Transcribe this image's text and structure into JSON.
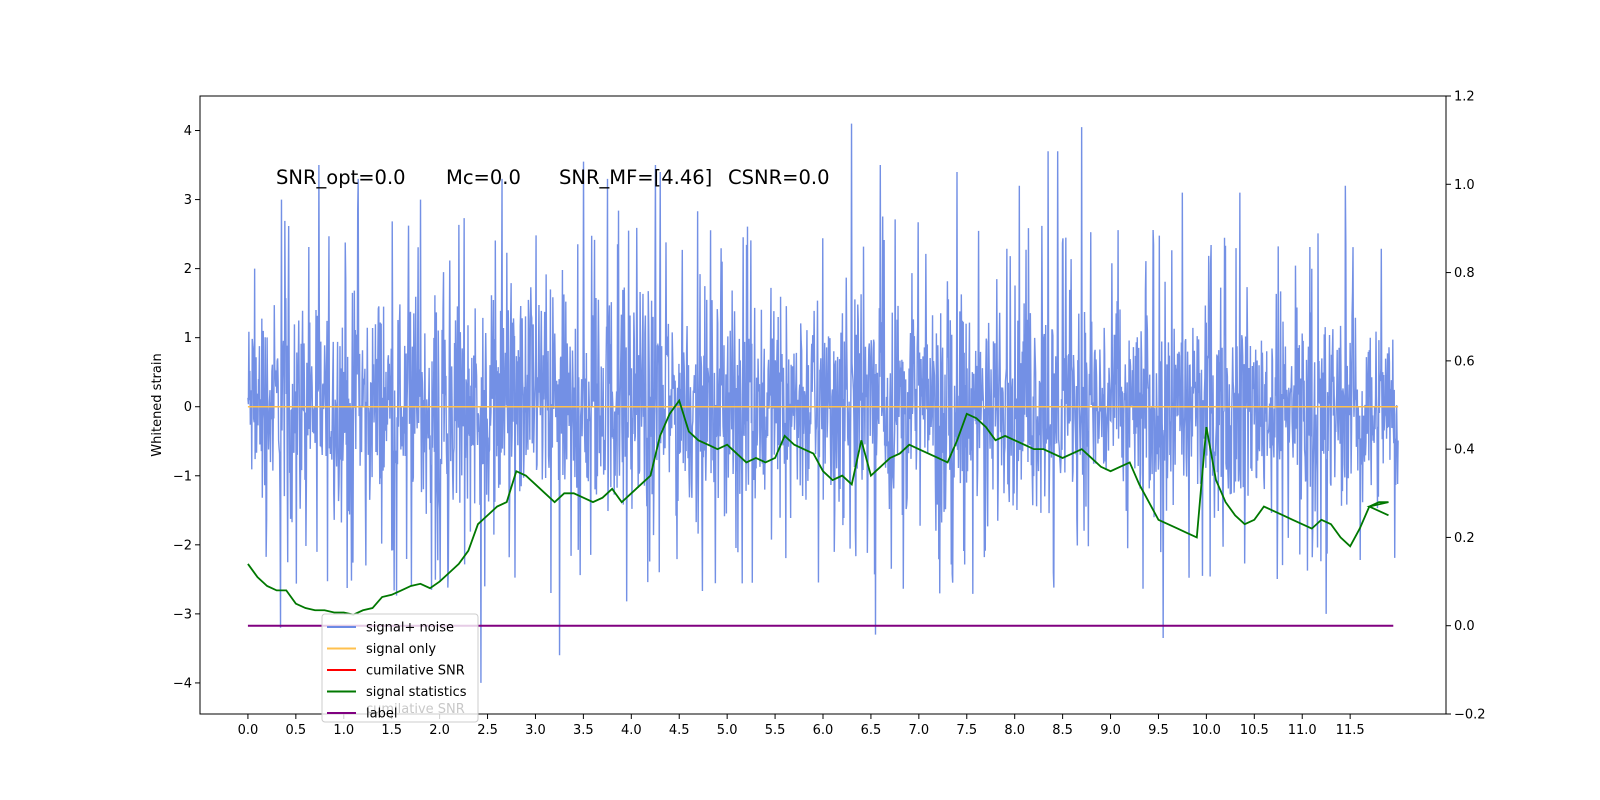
{
  "chart_data": {
    "type": "line",
    "title": "",
    "xlabel": "",
    "ylabel": "Whitened strain",
    "xlim": [
      -0.5,
      12.5
    ],
    "ylim": [
      -4.45,
      4.5
    ],
    "y2lim": [
      -0.2,
      1.2
    ],
    "grid": false,
    "legend_position": "lower-left",
    "xticks": [
      "0.0",
      "0.5",
      "1.0",
      "1.5",
      "2.0",
      "2.5",
      "3.0",
      "3.5",
      "4.0",
      "4.5",
      "5.0",
      "5.5",
      "6.0",
      "6.5",
      "7.0",
      "7.5",
      "8.0",
      "8.5",
      "9.0",
      "9.5",
      "10.0",
      "10.5",
      "11.0",
      "11.5"
    ],
    "yticks": [
      "−4",
      "−3",
      "−2",
      "−1",
      "0",
      "1",
      "2",
      "3",
      "4"
    ],
    "y2ticks": [
      "−0.2",
      "0.0",
      "0.2",
      "0.4",
      "0.6",
      "0.8",
      "1.0",
      "1.2"
    ],
    "annotations": [
      {
        "text": "SNR_opt=0.0",
        "x": 0.2,
        "y": 3.2
      },
      {
        "text": "Mc=0.0",
        "x": 2.0,
        "y": 3.2
      },
      {
        "text": "SNR_MF=[4.46]",
        "x": 3.2,
        "y": 3.2
      },
      {
        "text": "CSNR=0.0",
        "x": 5.0,
        "y": 3.2
      }
    ],
    "legend": [
      {
        "label": "signal+ noise",
        "color": "#6c8ae4"
      },
      {
        "label": "signal only",
        "color": "#ffc04d"
      },
      {
        "label": "cumilative SNR",
        "color": "#ff0000"
      },
      {
        "label": "signal statistics",
        "color": "#007800"
      },
      {
        "label": "label",
        "color": "#800080"
      }
    ],
    "legend_ghost_text": "cumilative SNR",
    "series": [
      {
        "name": "signal+ noise",
        "axis": "left",
        "color": "#6c8ae4",
        "x_start": 0.0,
        "x_end": 12.0,
        "envelope": {
          "x": [
            0.0,
            0.5,
            1.0,
            1.5,
            2.0,
            2.5,
            3.0,
            3.5,
            4.0,
            4.5,
            5.0,
            5.5,
            6.0,
            6.5,
            7.0,
            7.5,
            8.0,
            8.5,
            9.0,
            9.5,
            10.0,
            10.5,
            11.0,
            11.5,
            12.0
          ],
          "upper": [
            2.1,
            2.3,
            2.4,
            2.4,
            2.3,
            2.4,
            2.5,
            2.4,
            2.5,
            2.4,
            2.3,
            2.4,
            2.4,
            2.3,
            2.4,
            2.4,
            2.3,
            2.3,
            2.2,
            2.2,
            2.1,
            2.1,
            2.1,
            2.1,
            1.9
          ],
          "lower": [
            -2.1,
            -2.2,
            -2.3,
            -2.3,
            -2.2,
            -2.3,
            -2.3,
            -2.3,
            -2.4,
            -2.3,
            -2.2,
            -2.3,
            -2.3,
            -2.2,
            -2.3,
            -2.3,
            -2.2,
            -2.2,
            -2.2,
            -2.2,
            -2.1,
            -2.1,
            -2.1,
            -2.1,
            -1.9
          ]
        },
        "spikes": [
          {
            "x": 0.35,
            "y": 3.0
          },
          {
            "x": 0.34,
            "y": -3.2
          },
          {
            "x": 0.74,
            "y": 3.5
          },
          {
            "x": 1.15,
            "y": 3.3
          },
          {
            "x": 1.8,
            "y": 3.0
          },
          {
            "x": 2.43,
            "y": -4.0
          },
          {
            "x": 2.65,
            "y": 3.3
          },
          {
            "x": 3.25,
            "y": -3.6
          },
          {
            "x": 3.5,
            "y": 3.55
          },
          {
            "x": 3.75,
            "y": 3.3
          },
          {
            "x": 4.25,
            "y": 3.5
          },
          {
            "x": 4.3,
            "y": 3.4
          },
          {
            "x": 6.3,
            "y": 4.1
          },
          {
            "x": 6.55,
            "y": -3.3
          },
          {
            "x": 6.6,
            "y": 3.5
          },
          {
            "x": 7.4,
            "y": 3.4
          },
          {
            "x": 8.05,
            "y": 3.2
          },
          {
            "x": 8.35,
            "y": 3.7
          },
          {
            "x": 8.45,
            "y": 3.7
          },
          {
            "x": 8.7,
            "y": 4.05
          },
          {
            "x": 9.55,
            "y": -3.35
          },
          {
            "x": 9.75,
            "y": 3.1
          },
          {
            "x": 10.35,
            "y": 3.1
          },
          {
            "x": 11.25,
            "y": -3.0
          },
          {
            "x": 11.45,
            "y": 3.2
          }
        ]
      },
      {
        "name": "signal only",
        "axis": "left",
        "color": "#ffc04d",
        "x": [
          0.0,
          12.0
        ],
        "y": [
          0.0,
          0.0
        ]
      },
      {
        "name": "signal statistics",
        "axis": "right",
        "color": "#007800",
        "x": [
          0.0,
          0.1,
          0.2,
          0.3,
          0.4,
          0.5,
          0.6,
          0.7,
          0.8,
          0.9,
          1.0,
          1.1,
          1.2,
          1.3,
          1.4,
          1.5,
          1.6,
          1.7,
          1.8,
          1.9,
          2.0,
          2.1,
          2.2,
          2.3,
          2.4,
          2.5,
          2.6,
          2.7,
          2.8,
          2.9,
          3.0,
          3.1,
          3.2,
          3.3,
          3.4,
          3.5,
          3.6,
          3.7,
          3.8,
          3.9,
          4.0,
          4.1,
          4.2,
          4.3,
          4.4,
          4.5,
          4.6,
          4.7,
          4.8,
          4.9,
          5.0,
          5.1,
          5.2,
          5.3,
          5.4,
          5.5,
          5.6,
          5.7,
          5.8,
          5.9,
          6.0,
          6.1,
          6.2,
          6.3,
          6.4,
          6.5,
          6.6,
          6.7,
          6.8,
          6.9,
          7.0,
          7.1,
          7.2,
          7.3,
          7.4,
          7.5,
          7.6,
          7.7,
          7.8,
          7.9,
          8.0,
          8.1,
          8.2,
          8.3,
          8.4,
          8.5,
          8.6,
          8.7,
          8.8,
          8.9,
          9.0,
          9.1,
          9.2,
          9.3,
          9.4,
          9.5,
          9.6,
          9.7,
          9.8,
          9.9,
          10.0,
          10.1,
          10.2,
          10.3,
          10.4,
          10.5,
          10.6,
          10.7,
          10.8,
          10.9,
          11.0,
          11.1,
          11.2,
          11.3,
          11.4,
          11.5,
          11.6,
          11.7,
          11.8,
          11.9
        ],
        "y": [
          0.14,
          0.11,
          0.09,
          0.08,
          0.08,
          0.05,
          0.04,
          0.035,
          0.035,
          0.03,
          0.03,
          0.025,
          0.035,
          0.04,
          0.065,
          0.07,
          0.08,
          0.09,
          0.095,
          0.085,
          0.1,
          0.12,
          0.14,
          0.17,
          0.23,
          0.25,
          0.27,
          0.28,
          0.35,
          0.34,
          0.32,
          0.3,
          0.28,
          0.3,
          0.3,
          0.29,
          0.28,
          0.29,
          0.31,
          0.28,
          0.3,
          0.32,
          0.34,
          0.43,
          0.48,
          0.51,
          0.44,
          0.42,
          0.41,
          0.4,
          0.41,
          0.39,
          0.37,
          0.38,
          0.37,
          0.38,
          0.43,
          0.41,
          0.4,
          0.39,
          0.35,
          0.33,
          0.34,
          0.32,
          0.42,
          0.34,
          0.36,
          0.38,
          0.39,
          0.41,
          0.4,
          0.39,
          0.38,
          0.37,
          0.42,
          0.48,
          0.47,
          0.45,
          0.42,
          0.43,
          0.42,
          0.41,
          0.4,
          0.4,
          0.39,
          0.38,
          0.39,
          0.4,
          0.38,
          0.36,
          0.35,
          0.36,
          0.37,
          0.32,
          0.28,
          0.24,
          0.23,
          0.22,
          0.21,
          0.2,
          0.45,
          0.33,
          0.28,
          0.25,
          0.23,
          0.24,
          0.27,
          0.26,
          0.25,
          0.24,
          0.23,
          0.22,
          0.24,
          0.23,
          0.2,
          0.18,
          0.22,
          0.27,
          0.28,
          0.28
        ],
        "x_extra": [
          11.7,
          11.8,
          11.9
        ],
        "y_extra": [
          0.27,
          0.26,
          0.25
        ]
      },
      {
        "name": "label",
        "axis": "right",
        "color": "#800080",
        "x": [
          0.0,
          11.95
        ],
        "y": [
          0.0,
          0.0
        ]
      }
    ]
  }
}
